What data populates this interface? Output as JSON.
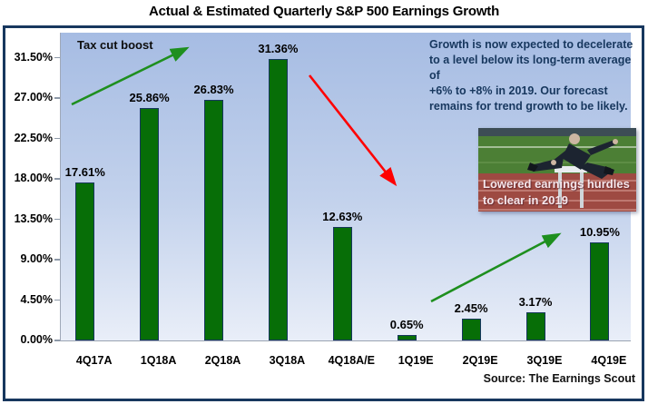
{
  "title": "Actual & Estimated Quarterly S&P 500 Earnings Growth",
  "chart_data": {
    "type": "bar",
    "categories": [
      "4Q17A",
      "1Q18A",
      "2Q18A",
      "3Q18A",
      "4Q18A/E",
      "1Q19E",
      "2Q19E",
      "3Q19E",
      "4Q19E"
    ],
    "values": [
      17.61,
      25.86,
      26.83,
      31.36,
      12.63,
      0.65,
      2.45,
      3.17,
      10.95
    ],
    "value_labels": [
      "17.61%",
      "25.86%",
      "26.83%",
      "31.36%",
      "12.63%",
      "0.65%",
      "2.45%",
      "3.17%",
      "10.95%"
    ],
    "title": "Actual & Estimated Quarterly S&P 500 Earnings Growth",
    "xlabel": "",
    "ylabel": "",
    "ylim": [
      0,
      34.3
    ],
    "ytick_labels": [
      "31.50%",
      "27.00%",
      "22.50%",
      "18.00%",
      "13.50%",
      "9.00%",
      "4.50%",
      "0.00%"
    ],
    "ytick_values": [
      31.5,
      27.0,
      22.5,
      18.0,
      13.5,
      9.0,
      4.5,
      0.0
    ],
    "grid": false,
    "legend": false,
    "annotations": [
      {
        "text": "Tax cut boost",
        "type": "label"
      },
      {
        "text": "Growth is now expected to decelerate\nto a level below its long-term average of\n+6% to +8% in 2019. Our forecast\nremains for trend growth to be likely.",
        "type": "label"
      },
      {
        "text": "Lowered earnings hurdles\nto clear in 2019",
        "type": "image-caption"
      },
      {
        "type": "arrow",
        "direction": "up",
        "color": "#1e8f1e",
        "meaning": "tax cut boost rise"
      },
      {
        "type": "arrow",
        "direction": "down",
        "color": "#ff0000",
        "meaning": "growth deceleration"
      },
      {
        "type": "arrow",
        "direction": "up",
        "color": "#1e8f1e",
        "meaning": "re-acceleration into 4Q19E"
      }
    ]
  },
  "annotations": {
    "tax_cut": "Tax cut boost",
    "forecast_note": "Growth is now expected to decelerate\nto a level below its long-term average of\n+6% to +8% in 2019. Our forecast\nremains for trend growth to be likely.",
    "hurdle_caption": "Lowered earnings hurdles\nto clear in 2019"
  },
  "source": "Source: The Earnings Scout",
  "colors": {
    "bar_fill": "#076e07",
    "bar_border": "#17375e",
    "arrow_up": "#1e8f1e",
    "arrow_down": "#ff0000",
    "frame_border": "#17375e",
    "plot_bg_top": "#a6bce3",
    "plot_bg_bottom": "#e9eef8"
  }
}
